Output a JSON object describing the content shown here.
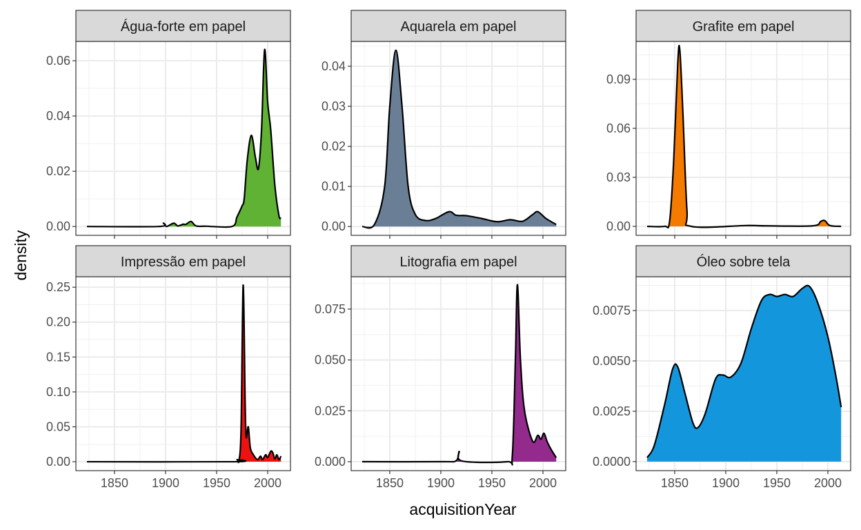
{
  "chart_data": {
    "type": "area",
    "subtype": "faceted density",
    "xlabel": "acquisitionYear",
    "ylabel": "density",
    "xlim": [
      1812.2,
      2022.3
    ],
    "x_ticks": [
      1850,
      1900,
      1950,
      2000
    ],
    "x_tick_labels": [
      "1850",
      "1900",
      "1950",
      "2000"
    ],
    "grid": true,
    "facets": [
      {
        "title": "Água-forte em papel",
        "fill": "#5fb233",
        "ylim": [
          -0.0032,
          0.067
        ],
        "y_ticks": [
          0,
          0.02,
          0.04,
          0.06
        ],
        "y_tick_labels": [
          "0.00",
          "0.02",
          "0.04",
          "0.06"
        ],
        "points": [
          [
            1823,
            0
          ],
          [
            1893,
            0
          ],
          [
            1898,
            0.0012
          ],
          [
            1901,
            0
          ],
          [
            1908,
            0.0012
          ],
          [
            1912,
            0.0002
          ],
          [
            1917,
            0.0008
          ],
          [
            1920,
            0.0008
          ],
          [
            1925,
            0.0018
          ],
          [
            1930,
            0.0002
          ],
          [
            1940,
            0.0001
          ],
          [
            1965,
            0
          ],
          [
            1970,
            0.0035
          ],
          [
            1975,
            0.0075
          ],
          [
            1977,
            0.01
          ],
          [
            1980,
            0.024
          ],
          [
            1984,
            0.033
          ],
          [
            1988,
            0.025
          ],
          [
            1991,
            0.021
          ],
          [
            1994,
            0.035
          ],
          [
            1997,
            0.064
          ],
          [
            2000,
            0.045
          ],
          [
            2003,
            0.035
          ],
          [
            2007,
            0.015
          ],
          [
            2011,
            0.004
          ],
          [
            2013,
            0.003
          ]
        ]
      },
      {
        "title": "Aquarela em papel",
        "fill": "#6a7f96",
        "ylim": [
          -0.0022,
          0.0462
        ],
        "y_ticks": [
          0,
          0.01,
          0.02,
          0.03,
          0.04
        ],
        "y_tick_labels": [
          "0.00",
          "0.01",
          "0.02",
          "0.03",
          "0.04"
        ],
        "points": [
          [
            1823,
            0
          ],
          [
            1835,
            0.0005
          ],
          [
            1845,
            0.01
          ],
          [
            1850,
            0.03
          ],
          [
            1856,
            0.044
          ],
          [
            1862,
            0.03
          ],
          [
            1868,
            0.01
          ],
          [
            1875,
            0.003
          ],
          [
            1885,
            0.0015
          ],
          [
            1895,
            0.002
          ],
          [
            1908,
            0.0037
          ],
          [
            1915,
            0.0028
          ],
          [
            1925,
            0.0027
          ],
          [
            1940,
            0.002
          ],
          [
            1955,
            0.0012
          ],
          [
            1968,
            0.0017
          ],
          [
            1980,
            0.0013
          ],
          [
            1990,
            0.003
          ],
          [
            1995,
            0.0037
          ],
          [
            2003,
            0.002
          ],
          [
            2013,
            0.0005
          ]
        ]
      },
      {
        "title": "Grafite em papel",
        "fill": "#f57a00",
        "ylim": [
          -0.0055,
          0.1132
        ],
        "y_ticks": [
          0,
          0.03,
          0.06,
          0.09
        ],
        "y_tick_labels": [
          "0.00",
          "0.03",
          "0.06",
          "0.09"
        ],
        "points": [
          [
            1823,
            0
          ],
          [
            1840,
            0
          ],
          [
            1845,
            0.003
          ],
          [
            1849,
            0.04
          ],
          [
            1853,
            0.1
          ],
          [
            1855,
            0.108
          ],
          [
            1858,
            0.07
          ],
          [
            1862,
            0.01
          ],
          [
            1866,
            0
          ],
          [
            1920,
            0.0005
          ],
          [
            1940,
            0.0003
          ],
          [
            1985,
            0.0003
          ],
          [
            1993,
            0.003
          ],
          [
            1997,
            0.0035
          ],
          [
            2002,
            0.0005
          ],
          [
            2013,
            0
          ]
        ]
      },
      {
        "title": "Impressão em papel",
        "fill": "#ee1111",
        "ylim": [
          -0.0128,
          0.265
        ],
        "y_ticks": [
          0,
          0.05,
          0.1,
          0.15,
          0.2,
          0.25
        ],
        "y_tick_labels": [
          "0.00",
          "0.05",
          "0.10",
          "0.15",
          "0.20",
          "0.25"
        ],
        "points": [
          [
            1823,
            0
          ],
          [
            1967,
            0
          ],
          [
            1970,
            0.003
          ],
          [
            1972,
            0.002
          ],
          [
            1974,
            0.05
          ],
          [
            1976,
            0.253
          ],
          [
            1978,
            0.08
          ],
          [
            1979,
            0.035
          ],
          [
            1981,
            0.05
          ],
          [
            1983,
            0.02
          ],
          [
            1986,
            0.01
          ],
          [
            1990,
            0.003
          ],
          [
            1993,
            0.008
          ],
          [
            1995,
            0.003
          ],
          [
            1998,
            0.01
          ],
          [
            2000,
            0.006
          ],
          [
            2003,
            0.015
          ],
          [
            2005,
            0.013
          ],
          [
            2007,
            0.004
          ],
          [
            2009,
            0.01
          ],
          [
            2011,
            0.003
          ],
          [
            2013,
            0.008
          ]
        ]
      },
      {
        "title": "Litografia em papel",
        "fill": "#922b8c",
        "ylim": [
          -0.0044,
          0.0909
        ],
        "y_ticks": [
          0,
          0.025,
          0.05,
          0.075
        ],
        "y_tick_labels": [
          "0.000",
          "0.025",
          "0.050",
          "0.075"
        ],
        "points": [
          [
            1823,
            0
          ],
          [
            1900,
            0
          ],
          [
            1915,
            0.0005
          ],
          [
            1918,
            0.005
          ],
          [
            1921,
            0.0003
          ],
          [
            1965,
            0
          ],
          [
            1970,
            0.003
          ],
          [
            1973,
            0.05
          ],
          [
            1975,
            0.087
          ],
          [
            1978,
            0.05
          ],
          [
            1982,
            0.025
          ],
          [
            1990,
            0.01
          ],
          [
            1995,
            0.013
          ],
          [
            1998,
            0.011
          ],
          [
            2001,
            0.014
          ],
          [
            2004,
            0.01
          ],
          [
            2008,
            0.006
          ],
          [
            2013,
            0.002
          ]
        ]
      },
      {
        "title": "Óleo sobre tela",
        "fill": "#1496dc",
        "ylim": [
          -0.00045,
          0.00918
        ],
        "y_ticks": [
          0,
          0.0025,
          0.005,
          0.0075
        ],
        "y_tick_labels": [
          "0.0000",
          "0.0025",
          "0.0050",
          "0.0075"
        ],
        "points": [
          [
            1823,
            0.0002
          ],
          [
            1830,
            0.0008
          ],
          [
            1840,
            0.0028
          ],
          [
            1848,
            0.0046
          ],
          [
            1853,
            0.0047
          ],
          [
            1860,
            0.0034
          ],
          [
            1868,
            0.0019
          ],
          [
            1873,
            0.0017
          ],
          [
            1880,
            0.0024
          ],
          [
            1890,
            0.0041
          ],
          [
            1897,
            0.0043
          ],
          [
            1905,
            0.0042
          ],
          [
            1915,
            0.0049
          ],
          [
            1925,
            0.0066
          ],
          [
            1935,
            0.008
          ],
          [
            1943,
            0.0083
          ],
          [
            1950,
            0.0082
          ],
          [
            1958,
            0.0083
          ],
          [
            1966,
            0.0082
          ],
          [
            1975,
            0.0086
          ],
          [
            1982,
            0.0087
          ],
          [
            1990,
            0.0079
          ],
          [
            2000,
            0.0062
          ],
          [
            2008,
            0.0042
          ],
          [
            2013,
            0.0027
          ]
        ]
      }
    ]
  }
}
